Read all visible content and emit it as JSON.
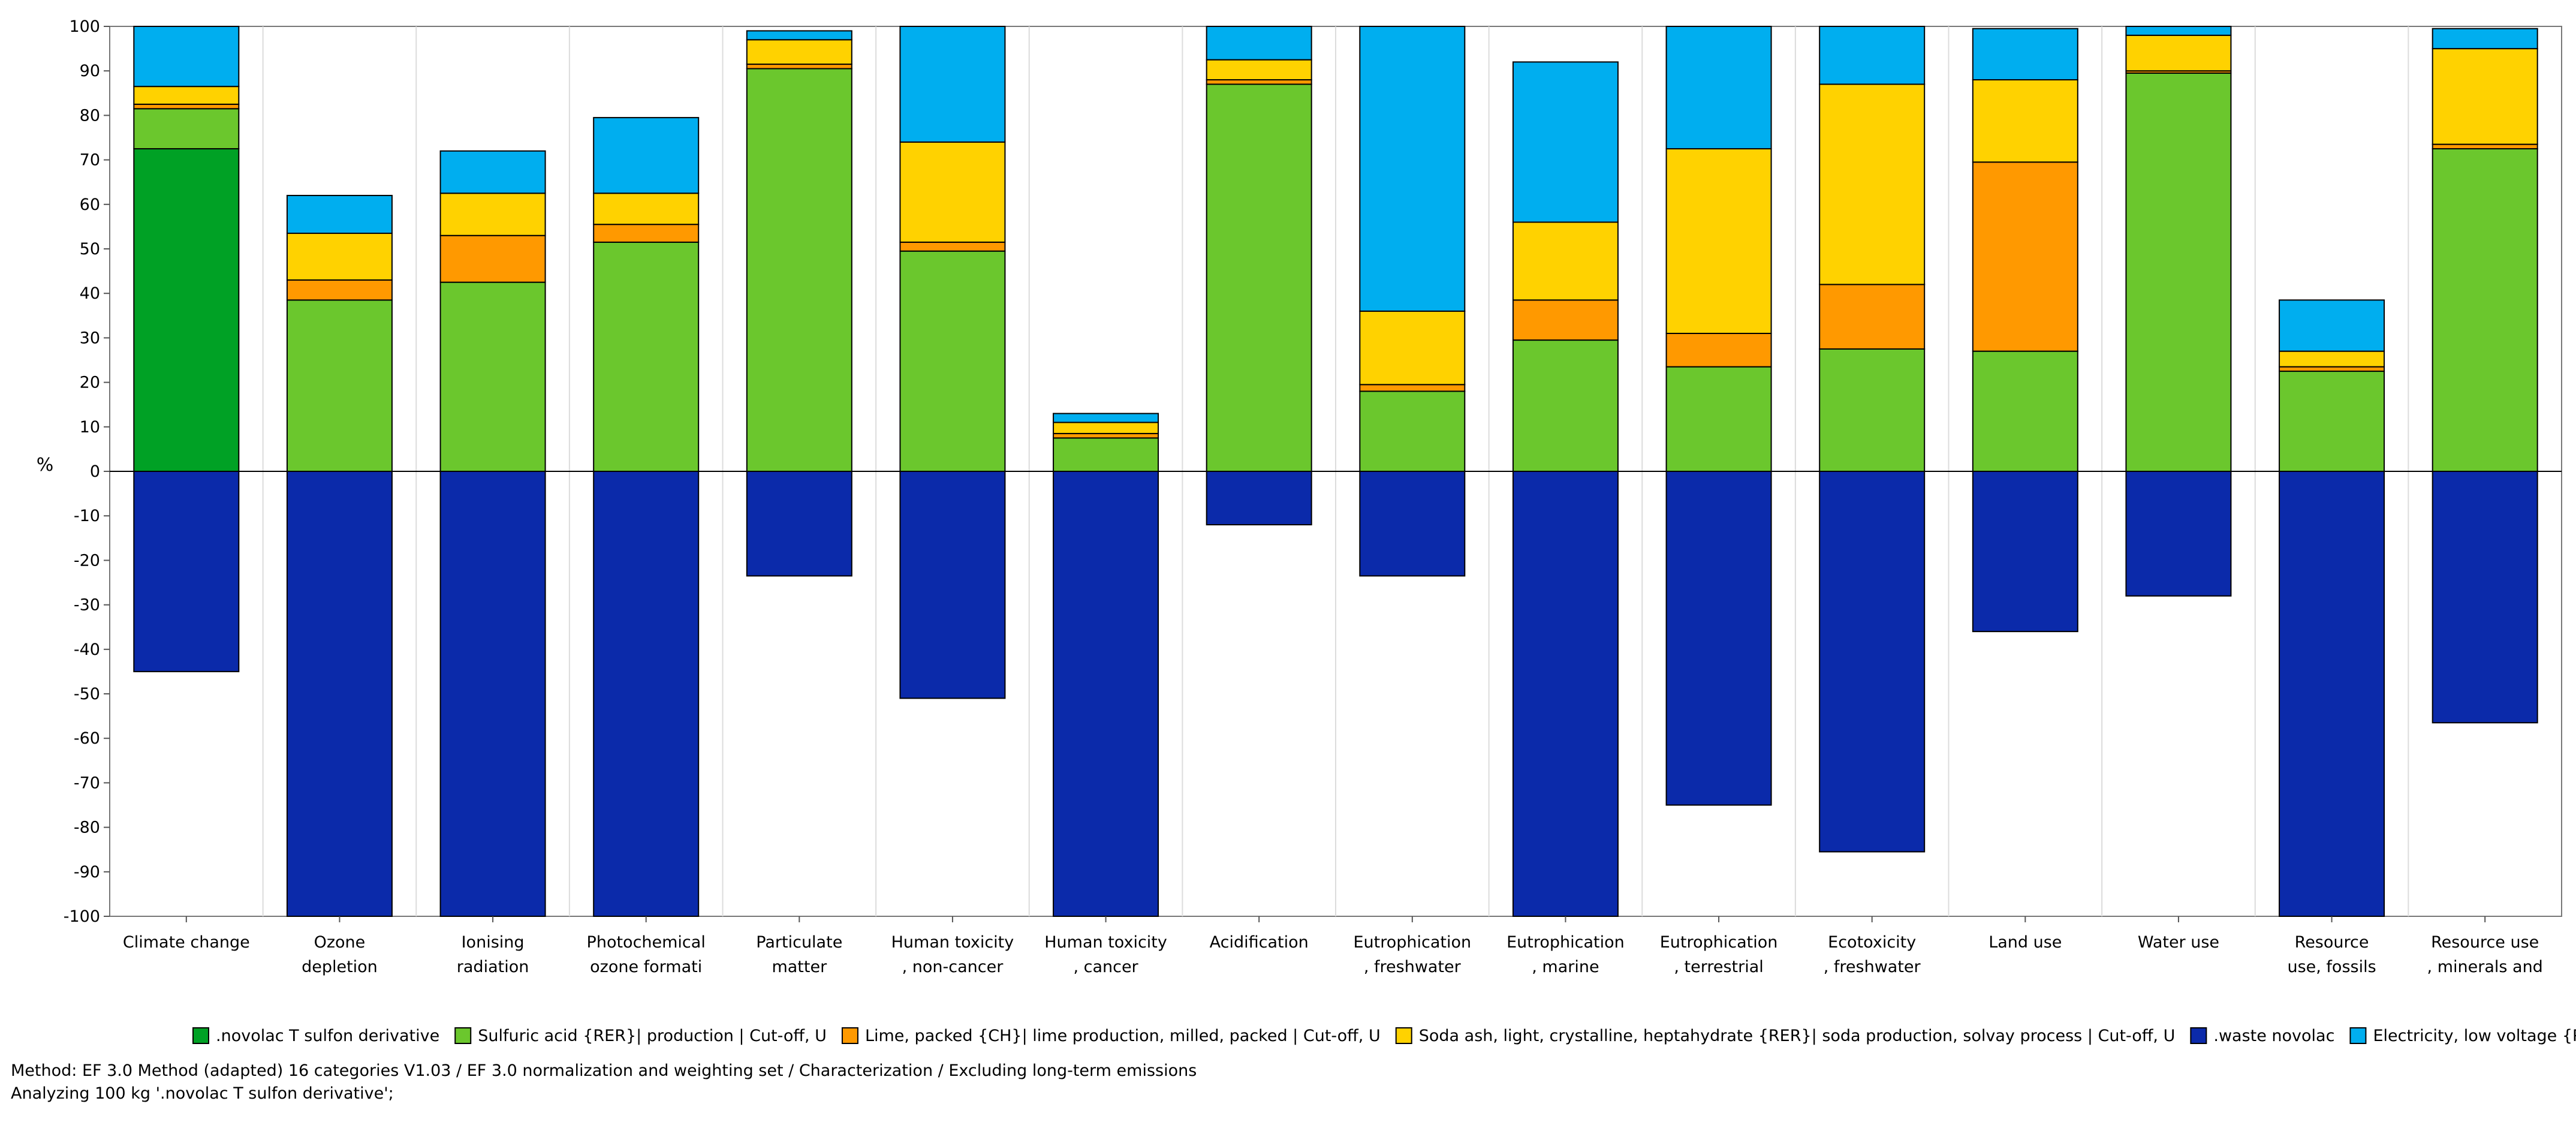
{
  "chart_data": {
    "type": "bar",
    "stacked": true,
    "ylabel": "%",
    "ylim": [
      -100,
      100
    ],
    "ytick_step": 10,
    "grid": "vertical",
    "legend_position": "bottom",
    "categories": [
      [
        "Climate change",
        ""
      ],
      [
        "Ozone",
        "depletion"
      ],
      [
        "Ionising",
        "radiation"
      ],
      [
        "Photochemical",
        "ozone formati"
      ],
      [
        "Particulate",
        "matter"
      ],
      [
        "Human toxicity",
        ", non-cancer"
      ],
      [
        "Human toxicity",
        ", cancer"
      ],
      [
        "Acidification",
        ""
      ],
      [
        "Eutrophication",
        ", freshwater"
      ],
      [
        "Eutrophication",
        ", marine"
      ],
      [
        "Eutrophication",
        ", terrestrial"
      ],
      [
        "Ecotoxicity",
        ", freshwater"
      ],
      [
        "Land use",
        ""
      ],
      [
        "Water use",
        ""
      ],
      [
        "Resource",
        "use, fossils"
      ],
      [
        "Resource use",
        ", minerals and"
      ]
    ],
    "series": [
      {
        "name": ".novolac T sulfon derivative",
        "color": "#00A125",
        "values": [
          72.5,
          0,
          0,
          0,
          0,
          0,
          0,
          0,
          0,
          0,
          0,
          0,
          0,
          0,
          0,
          0
        ]
      },
      {
        "name": "Sulfuric acid {RER}| production | Cut-off, U",
        "color": "#6BC72D",
        "values": [
          9,
          38.5,
          42.5,
          51.5,
          90.5,
          49.5,
          7.5,
          87,
          18,
          29.5,
          23.5,
          27.5,
          27,
          89.5,
          22.5,
          72.5
        ]
      },
      {
        "name": "Lime, packed {CH}| lime production, milled, packed | Cut-off, U",
        "color": "#FF9900",
        "values": [
          1,
          4.5,
          10.5,
          4,
          1,
          2,
          1,
          1,
          1.5,
          9,
          7.5,
          14.5,
          42.5,
          0.5,
          1,
          1
        ]
      },
      {
        "name": "Soda ash, light, crystalline, heptahydrate {RER}| soda production, solvay process | Cut-off, U",
        "color": "#FFD200",
        "values": [
          4,
          10.5,
          9.5,
          7,
          5.5,
          22.5,
          2.5,
          4.5,
          16.5,
          17.5,
          41.5,
          45,
          18.5,
          8,
          3.5,
          21.5
        ]
      },
      {
        "name": ".waste novolac",
        "color": "#0B2AAA",
        "values": [
          -45,
          -100,
          -100,
          -100,
          -23.5,
          -51,
          -100,
          -12,
          -23.5,
          -100,
          -75,
          -85.5,
          -36,
          -28,
          -100,
          -56.5
        ]
      },
      {
        "name": "Electricity, low voltage {PL}| market for | Cut-off, U",
        "color": "#00AEEF",
        "values": [
          13.5,
          8.5,
          9.5,
          17,
          2,
          26,
          2,
          7.5,
          64,
          36,
          27.5,
          13,
          11.5,
          2,
          11.5,
          4.5
        ]
      }
    ]
  },
  "footer": {
    "method": "Method: EF 3.0 Method (adapted) 16 categories V1.03 / EF 3.0 normalization and weighting set / Characterization / Excluding long-term emissions",
    "analyzing": "Analyzing 100 kg '.novolac T sulfon derivative';"
  }
}
